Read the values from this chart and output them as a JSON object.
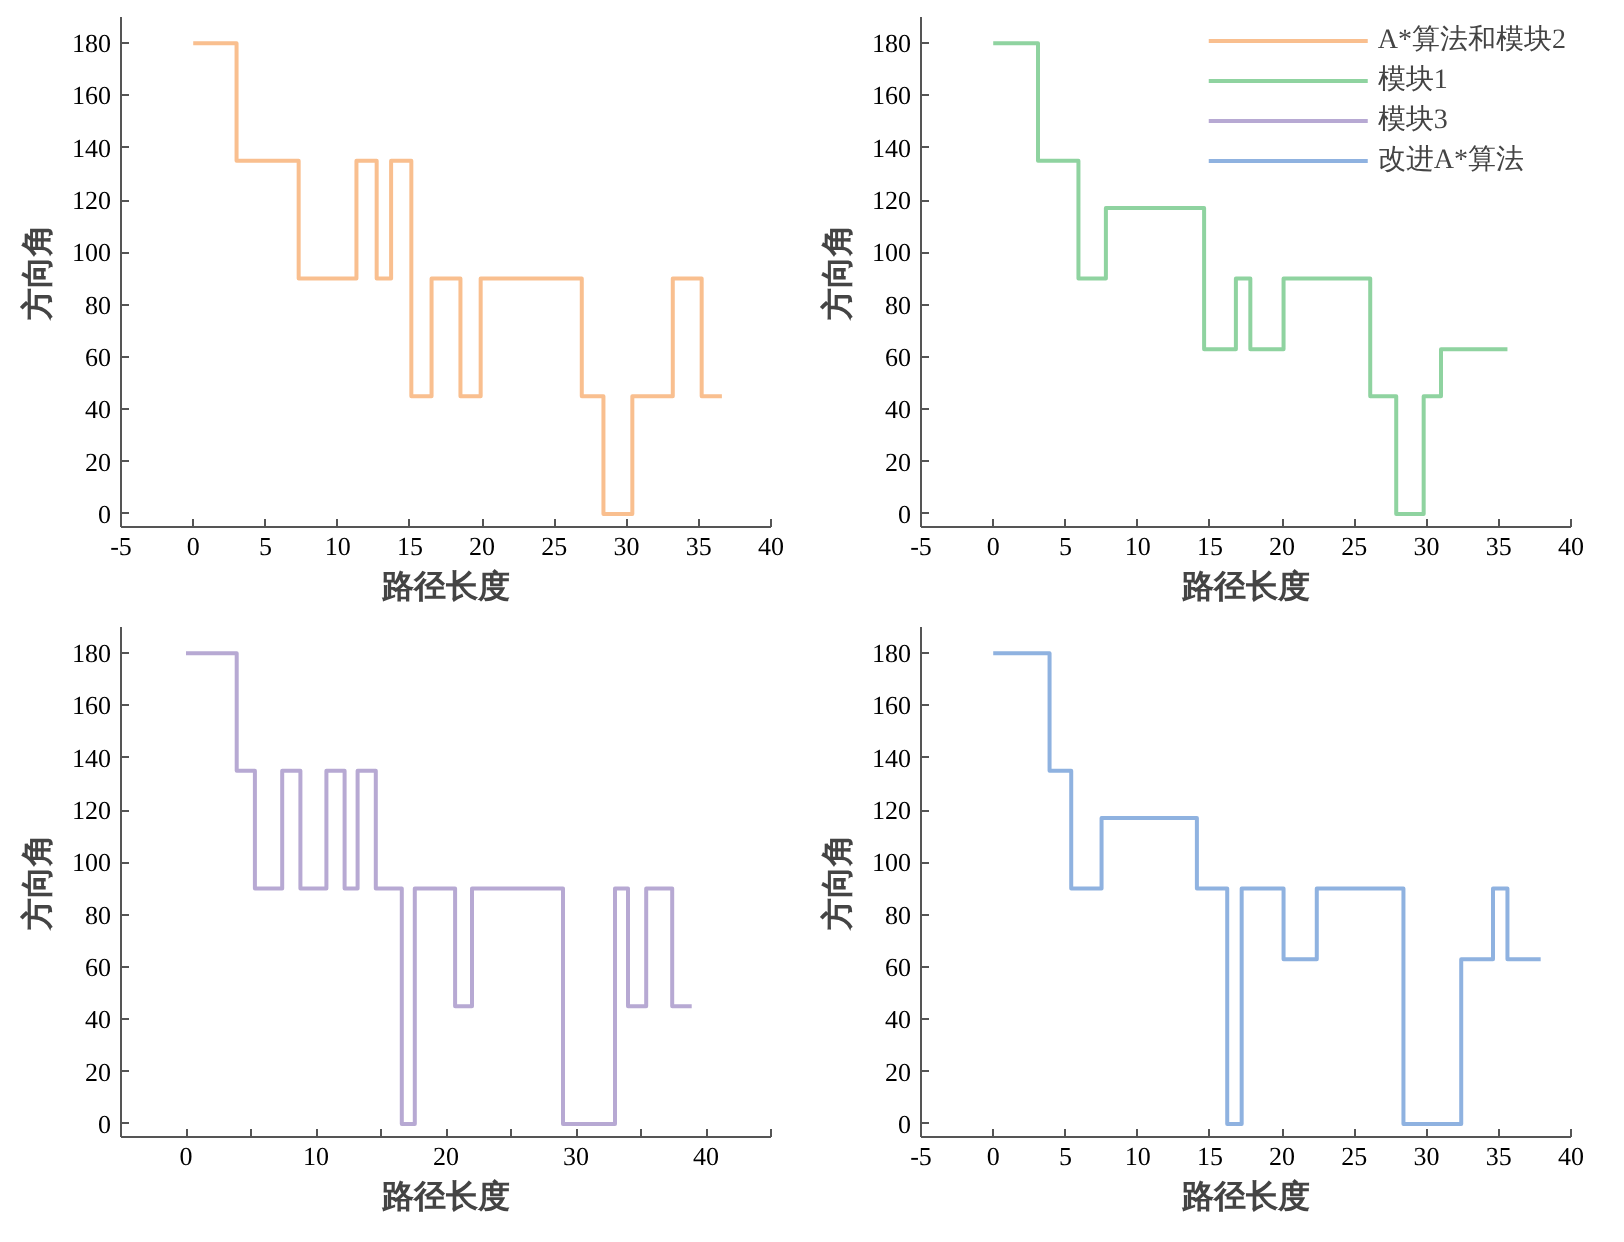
{
  "chart_data": [
    {
      "type": "step",
      "xlabel": "路径长度",
      "ylabel": "方向角",
      "xlim": [
        -5,
        40
      ],
      "xticks": [
        -5,
        0,
        5,
        10,
        15,
        20,
        25,
        30,
        35,
        40
      ],
      "ylim": [
        -5,
        190
      ],
      "yticks": [
        0,
        20,
        40,
        60,
        80,
        100,
        120,
        140,
        160,
        180
      ],
      "grid": false,
      "legend": false,
      "series": [
        {
          "name": "A*算法和模块2",
          "color": "#f9bf8f",
          "x": [
            0,
            3.0,
            7.3,
            11.3,
            12.7,
            13.7,
            15.1,
            16.5,
            18.5,
            19.9,
            26.9,
            28.4,
            30.4,
            33.2,
            35.2,
            36.6
          ],
          "values": [
            180,
            135,
            90,
            135,
            90,
            135,
            45,
            90,
            45,
            90,
            45,
            0,
            45,
            90,
            45,
            45
          ]
        }
      ]
    },
    {
      "type": "step",
      "xlabel": "路径长度",
      "ylabel": "方向角",
      "xlim": [
        -5,
        40
      ],
      "xticks": [
        -5,
        0,
        5,
        10,
        15,
        20,
        25,
        30,
        35,
        40
      ],
      "ylim": [
        -5,
        190
      ],
      "yticks": [
        0,
        20,
        40,
        60,
        80,
        100,
        120,
        140,
        160,
        180
      ],
      "grid": false,
      "legend": "top right",
      "series": [
        {
          "name": "模块1",
          "color": "#8fd3a0",
          "x": [
            0,
            3.1,
            5.9,
            7.8,
            14.6,
            16.8,
            17.8,
            20.1,
            26.1,
            27.9,
            29.8,
            31.0,
            35.6
          ],
          "values": [
            180,
            135,
            90,
            117,
            63,
            90,
            63,
            90,
            45,
            0,
            45,
            63,
            63
          ]
        }
      ]
    },
    {
      "type": "step",
      "xlabel": "路径长度",
      "ylabel": "方向角",
      "xlim": [
        -5,
        45
      ],
      "xticks": [
        0,
        {
          "value": 5,
          "label": null
        },
        10,
        {
          "value": 15,
          "label": null
        },
        20,
        {
          "value": 25,
          "label": null
        },
        30,
        {
          "value": 35,
          "label": null
        },
        40,
        {
          "value": 45,
          "label": null
        }
      ],
      "ylim": [
        -5,
        190
      ],
      "yticks": [
        0,
        20,
        40,
        60,
        80,
        100,
        120,
        140,
        160,
        180
      ],
      "grid": false,
      "legend": false,
      "series": [
        {
          "name": "模块3",
          "color": "#b7a9d3",
          "x": [
            0,
            3.9,
            5.3,
            7.4,
            8.8,
            10.8,
            12.2,
            13.2,
            14.6,
            16.6,
            17.6,
            20.7,
            22.0,
            29.0,
            33.0,
            34.0,
            35.4,
            37.4,
            38.9
          ],
          "values": [
            180,
            135,
            90,
            135,
            90,
            135,
            90,
            135,
            90,
            0,
            90,
            45,
            90,
            0,
            90,
            45,
            90,
            45,
            45
          ]
        }
      ]
    },
    {
      "type": "step",
      "xlabel": "路径长度",
      "ylabel": "方向角",
      "xlim": [
        -5,
        40
      ],
      "xticks": [
        -5,
        0,
        5,
        10,
        15,
        20,
        25,
        30,
        35,
        40
      ],
      "ylim": [
        -5,
        190
      ],
      "yticks": [
        0,
        20,
        40,
        60,
        80,
        100,
        120,
        140,
        160,
        180
      ],
      "grid": false,
      "legend": false,
      "series": [
        {
          "name": "改进A*算法",
          "color": "#8fb2e0",
          "x": [
            0,
            3.9,
            5.4,
            7.5,
            14.1,
            16.2,
            17.2,
            20.1,
            22.4,
            28.4,
            32.4,
            34.6,
            35.6,
            37.9
          ],
          "values": [
            180,
            135,
            90,
            117,
            90,
            0,
            90,
            63,
            90,
            0,
            63,
            90,
            63,
            63
          ]
        }
      ]
    }
  ]
}
